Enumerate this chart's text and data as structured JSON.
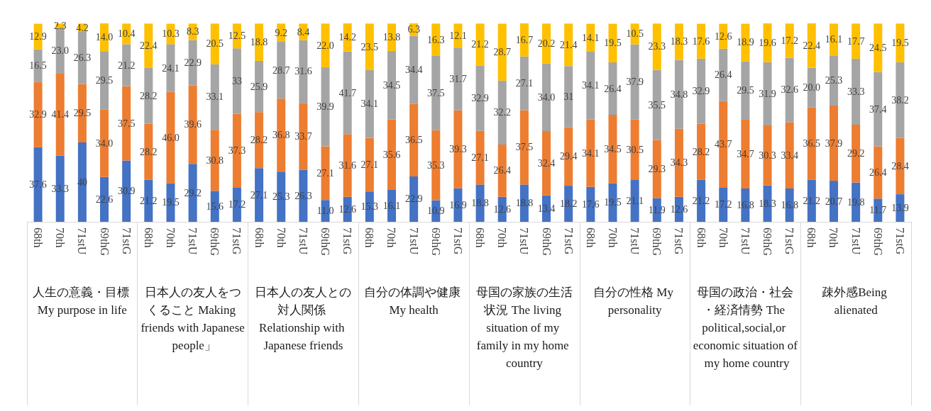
{
  "chart_data": {
    "type": "bar",
    "stacked": true,
    "categories": [
      "68th",
      "70th",
      "71stU",
      "69thG",
      "71stG",
      "68th",
      "70th",
      "71stU",
      "69thG",
      "71stG",
      "68th",
      "70th",
      "71stU",
      "69thG",
      "71stG",
      "68th",
      "70th",
      "71stU",
      "69thG",
      "71stG",
      "68th",
      "70th",
      "71stU",
      "69thG",
      "71stG",
      "68th",
      "70th",
      "71stU",
      "69thG",
      "71stG",
      "68th",
      "70th",
      "71stU",
      "69thG",
      "71stG",
      "68th",
      "70th",
      "71stU",
      "69thG",
      "71stG"
    ],
    "annotations": [
      "人生の意義・目標 My purpose in life",
      "日本人の友人をつくること Making friends with Japanese people」",
      "日本人の友人との対人関係 Relationship with Japanese friends",
      "自分の体調や健康 My health",
      "母国の家族の生活状況 The living situation of my family in my home country",
      "自分の性格 My personality",
      "母国の政治・社会・経済情勢 The political,social,or economic situation of my home country",
      "疎外感Being alienated"
    ],
    "series": [
      {
        "color": "#4472c4",
        "values": [
          37.6,
          33.3,
          40,
          22.6,
          30.9,
          21.2,
          19.5,
          29.2,
          15.6,
          17.2,
          27.1,
          25.3,
          26.3,
          11.0,
          12.6,
          15.3,
          16.1,
          22.9,
          10.9,
          16.9,
          18.8,
          12.6,
          18.8,
          13.4,
          18.2,
          17.6,
          19.5,
          21.1,
          11.9,
          12.6,
          21.2,
          17.2,
          16.8,
          18.3,
          16.8,
          21.2,
          20.7,
          19.8,
          11.7,
          13.9
        ],
        "value_labels": [
          "37.6",
          "33.3",
          "40",
          "22.6",
          "30.9",
          "21.2",
          "19.5",
          "29.2",
          "15.6",
          "17.2",
          "27.1",
          "25.3",
          "26.3",
          "11.0",
          "12.6",
          "15.3",
          "16.1",
          "22.9",
          "10.9",
          "16.9",
          "18.8",
          "12.6",
          "18.8",
          "13.4",
          "18.2",
          "17.6",
          "19.5",
          "21.1",
          "11.9",
          "12.6",
          "21.2",
          "17.2",
          "16.8",
          "18.3",
          "16.8",
          "21.2",
          "20.7",
          "19.8",
          "11.7",
          "13.9"
        ]
      },
      {
        "color": "#ed7d31",
        "values": [
          32.9,
          41.4,
          29.5,
          34.0,
          37.5,
          28.2,
          46.0,
          39.6,
          30.8,
          37.3,
          28.2,
          36.8,
          33.7,
          27.1,
          31.6,
          27.1,
          35.6,
          36.5,
          35.3,
          39.3,
          27.1,
          26.4,
          37.5,
          32.4,
          29.4,
          34.1,
          34.5,
          30.5,
          29.3,
          34.3,
          28.2,
          43.7,
          34.7,
          30.3,
          33.4,
          36.5,
          37.9,
          29.2,
          26.4,
          28.4
        ],
        "value_labels": [
          "32.9",
          "41.4",
          "29.5",
          "34.0",
          "37.5",
          "28.2",
          "46.0",
          "39.6",
          "30.8",
          "37.3",
          "28.2",
          "36.8",
          "33.7",
          "27.1",
          "31.6",
          "27.1",
          "35.6",
          "36.5",
          "35.3",
          "39.3",
          "27.1",
          "26.4",
          "37.5",
          "32.4",
          "29.4",
          "34.1",
          "34.5",
          "30.5",
          "29.3",
          "34.3",
          "28.2",
          "43.7",
          "34.7",
          "30.3",
          "33.4",
          "36.5",
          "37.9",
          "29.2",
          "26.4",
          "28.4"
        ]
      },
      {
        "color": "#a5a5a5",
        "values": [
          16.5,
          23.0,
          26.3,
          29.5,
          21.2,
          28.2,
          24.1,
          22.9,
          33.1,
          33,
          25.9,
          28.7,
          31.6,
          39.9,
          41.7,
          34.1,
          34.5,
          34.4,
          37.5,
          31.7,
          32.9,
          32.2,
          27.1,
          34.0,
          31,
          34.1,
          26.4,
          37.9,
          35.5,
          34.8,
          32.9,
          26.4,
          29.5,
          31.9,
          32.6,
          20.0,
          25.3,
          33.3,
          37.4,
          38.2
        ],
        "value_labels": [
          "16.5",
          "23.0",
          "26.3",
          "29.5",
          "21.2",
          "28.2",
          "24.1",
          "22.9",
          "33.1",
          "33",
          "25.9",
          "28.7",
          "31.6",
          "39.9",
          "41.7",
          "34.1",
          "34.5",
          "34.4",
          "37.5",
          "31.7",
          "32.9",
          "32.2",
          "27.1",
          "34.0",
          "31",
          "34.1",
          "26.4",
          "37.9",
          "35.5",
          "34.8",
          "32.9",
          "26.4",
          "29.5",
          "31.9",
          "32.6",
          "20.0",
          "25.3",
          "33.3",
          "37.4",
          "38.2"
        ]
      },
      {
        "color": "#ffc000",
        "values": [
          12.9,
          2.3,
          4.2,
          14.0,
          10.4,
          22.4,
          10.3,
          8.3,
          20.5,
          12.5,
          18.8,
          9.2,
          8.4,
          22.0,
          14.2,
          23.5,
          13.8,
          6.3,
          16.3,
          12.1,
          21.2,
          28.7,
          16.7,
          20.2,
          21.4,
          14.1,
          19.5,
          10.5,
          23.3,
          18.3,
          17.6,
          12.6,
          18.9,
          19.6,
          17.2,
          22.4,
          16.1,
          17.7,
          24.5,
          19.5
        ],
        "value_labels": [
          "12.9",
          "2.3",
          "4.2",
          "14.0",
          "10.4",
          "22.4",
          "10.3",
          "8.3",
          "20.5",
          "12.5",
          "18.8",
          "9.2",
          "8.4",
          "22.0",
          "14.2",
          "23.5",
          "13.8",
          "6.3",
          "16.3",
          "12.1",
          "21.2",
          "28.7",
          "16.7",
          "20.2",
          "21.4",
          "14.1",
          "19.5",
          "10.5",
          "23.3",
          "18.3",
          "17.6",
          "12.6",
          "18.9",
          "19.6",
          "17.2",
          "22.4",
          "16.1",
          "17.7",
          "24.5",
          "19.5"
        ]
      }
    ]
  }
}
